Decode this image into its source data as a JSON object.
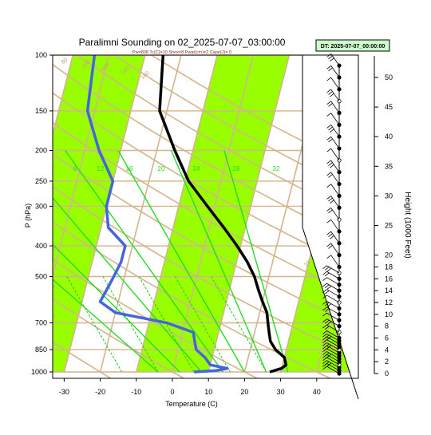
{
  "chart_data": {
    "type": "line",
    "title": "Paralimni Sounding on 02_2025-07-07_03:00:00",
    "subtitle": "Pw=808 Tc(C)=10 Shox=8 Pwat(cm)=2 Cape(J)= 0",
    "dt_label": "DT: 2025-07-07_00:00:00",
    "xlabel": "Temperature (C)",
    "ylabel": "P (hPa)",
    "y2label": "Height (1000 Feet)",
    "x_ticks": [
      -30,
      -20,
      -10,
      0,
      10,
      20,
      30,
      40
    ],
    "xlim": [
      -33,
      50
    ],
    "p_ticks": [
      100,
      150,
      200,
      250,
      300,
      400,
      500,
      700,
      850,
      1000
    ],
    "ylim": [
      1030,
      100
    ],
    "y_scale": "log",
    "height_ticks": [
      0,
      2,
      4,
      6,
      8,
      10,
      12,
      14,
      16,
      18,
      20,
      25,
      30,
      35,
      40,
      45,
      50
    ],
    "mixing_ratio_labels": [
      "8",
      "12",
      "16",
      "20",
      "24",
      "28",
      "32"
    ],
    "dry_adiabat_labels": [
      "80",
      "100",
      "120",
      "140",
      "160",
      "130",
      "100",
      "70",
      "40",
      "10",
      "-20",
      "-50",
      "-80",
      "-110",
      "40",
      "20",
      "-10",
      "-40",
      "-70"
    ],
    "series": [
      {
        "role": "temperature",
        "color": "#000000",
        "points": [
          {
            "p": 1000,
            "t": 27.0
          },
          {
            "p": 975,
            "t": 30.0
          },
          {
            "p": 950,
            "t": 31.0
          },
          {
            "p": 900,
            "t": 30.0
          },
          {
            "p": 850,
            "t": 27.0
          },
          {
            "p": 800,
            "t": 25.0
          },
          {
            "p": 750,
            "t": 24.0
          },
          {
            "p": 700,
            "t": 23.0
          },
          {
            "p": 650,
            "t": 22.0
          },
          {
            "p": 600,
            "t": 20.0
          },
          {
            "p": 550,
            "t": 18.0
          },
          {
            "p": 500,
            "t": 16.0
          },
          {
            "p": 450,
            "t": 13.0
          },
          {
            "p": 400,
            "t": 9.0
          },
          {
            "p": 350,
            "t": 4.0
          },
          {
            "p": 300,
            "t": -2.0
          },
          {
            "p": 250,
            "t": -9.0
          },
          {
            "p": 200,
            "t": -15.0
          },
          {
            "p": 150,
            "t": -22.0
          },
          {
            "p": 100,
            "t": -25.0
          }
        ]
      },
      {
        "role": "dewpoint",
        "color": "#4466dd",
        "points": [
          {
            "p": 1000,
            "t": 6.0
          },
          {
            "p": 990,
            "t": 12.0
          },
          {
            "p": 975,
            "t": 15.0
          },
          {
            "p": 950,
            "t": 10.0
          },
          {
            "p": 900,
            "t": 8.0
          },
          {
            "p": 850,
            "t": 5.0
          },
          {
            "p": 800,
            "t": 4.0
          },
          {
            "p": 750,
            "t": 3.0
          },
          {
            "p": 700,
            "t": -5.0
          },
          {
            "p": 650,
            "t": -20.0
          },
          {
            "p": 600,
            "t": -25.0
          },
          {
            "p": 550,
            "t": -24.0
          },
          {
            "p": 500,
            "t": -23.0
          },
          {
            "p": 450,
            "t": -22.0
          },
          {
            "p": 400,
            "t": -22.0
          },
          {
            "p": 350,
            "t": -28.0
          },
          {
            "p": 300,
            "t": -30.0
          },
          {
            "p": 250,
            "t": -30.0
          },
          {
            "p": 200,
            "t": -36.0
          },
          {
            "p": 150,
            "t": -42.0
          },
          {
            "p": 100,
            "t": -44.0
          }
        ]
      }
    ],
    "wind_barb_heights": [
      0,
      0.5,
      1,
      1.5,
      2,
      2.5,
      3,
      3.5,
      4,
      4.5,
      5,
      5.5,
      6,
      7,
      8,
      9,
      10,
      11,
      12,
      13,
      14,
      15,
      16,
      17,
      18,
      20,
      22,
      24,
      26,
      28,
      30,
      32,
      34,
      36,
      38,
      40,
      42,
      44,
      46,
      48,
      50,
      52
    ]
  }
}
